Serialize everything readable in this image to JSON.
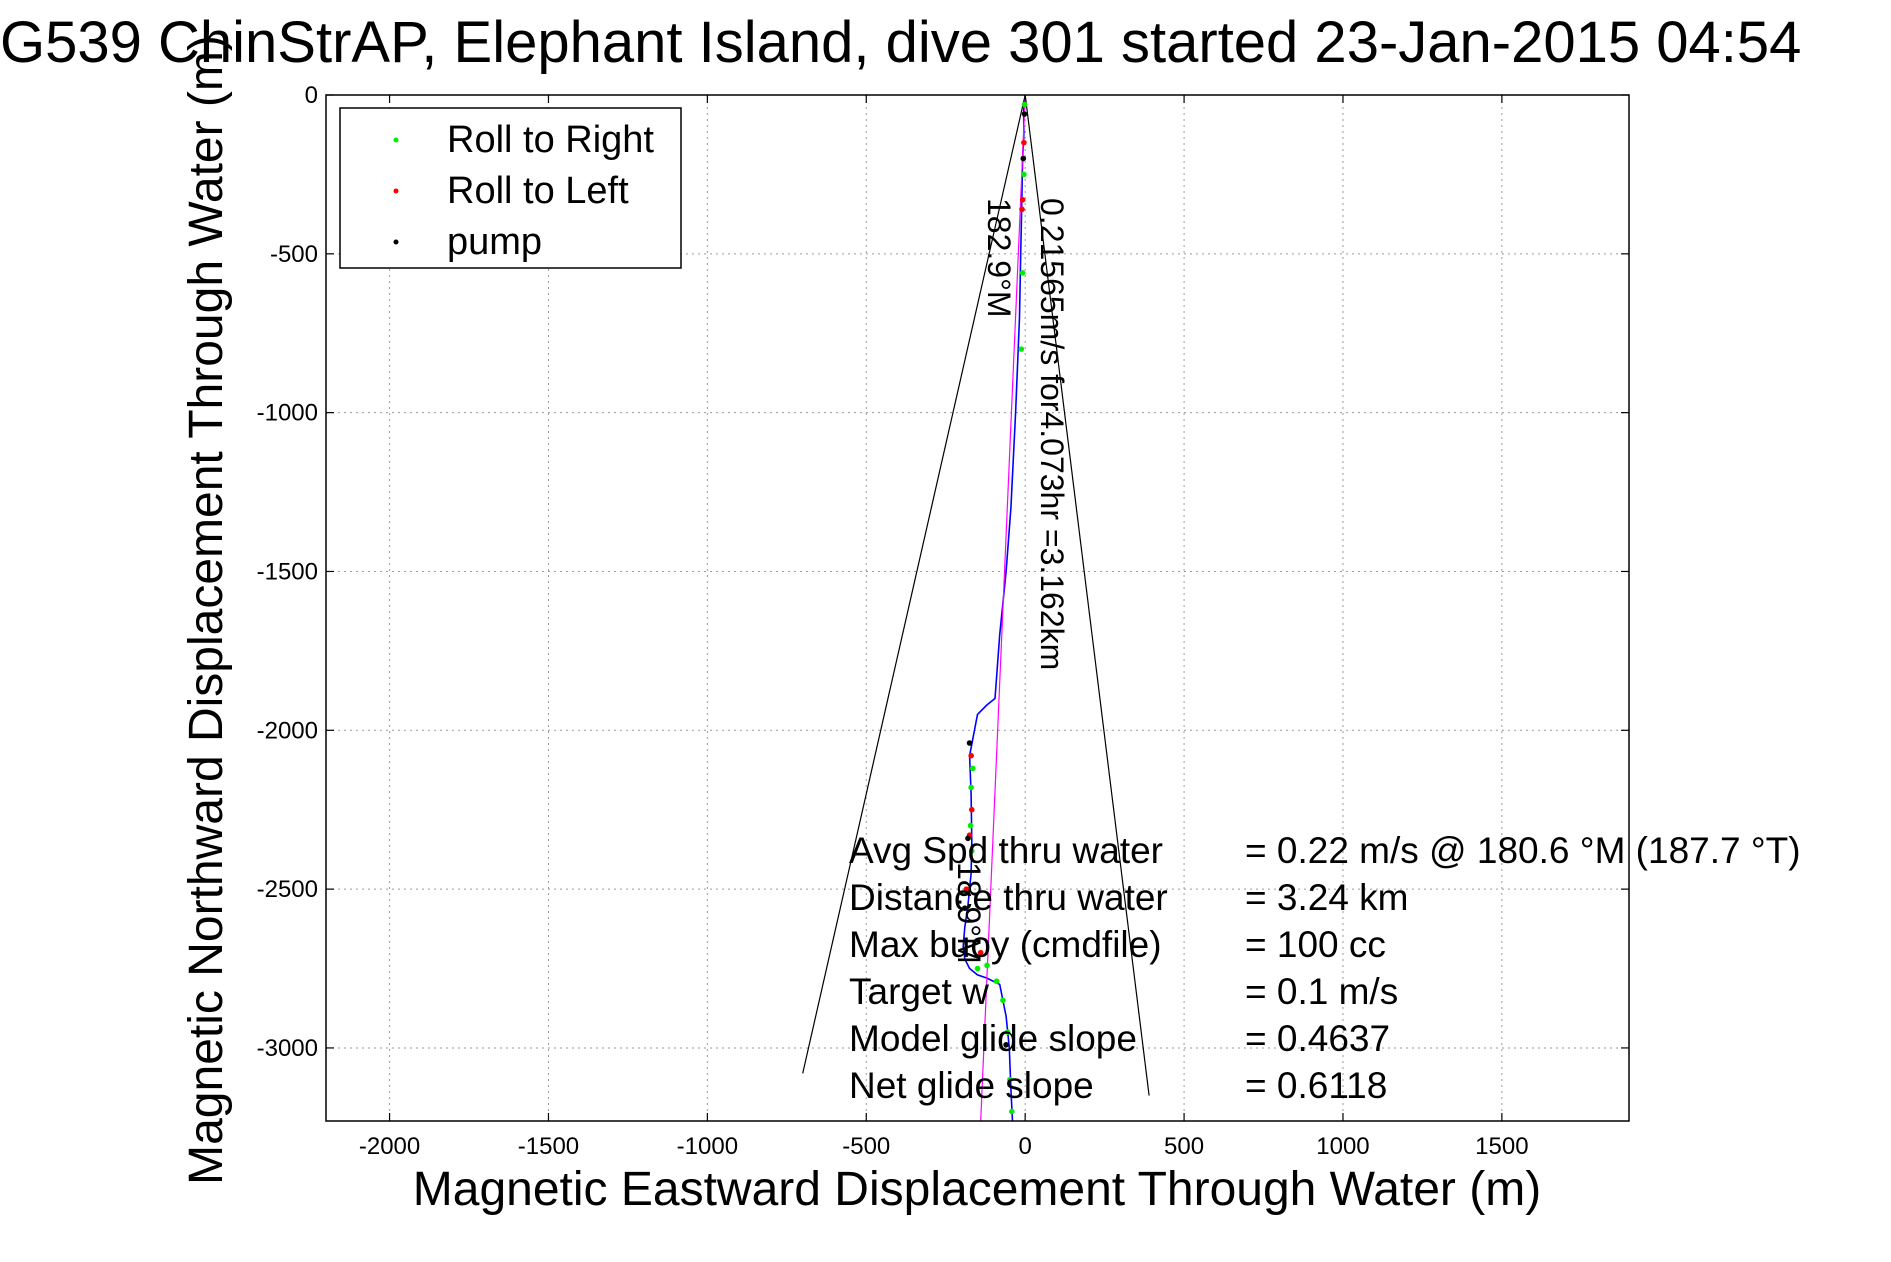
{
  "chart_data": {
    "type": "line",
    "title": "G539 ChinStrAP, Elephant Island, dive 301 started 23-Jan-2015 04:54",
    "xlabel": "Magnetic Eastward Displacement Through Water (m)",
    "ylabel": "Magnetic Northward Displacement Through Water (m)",
    "xlim": [
      -2200,
      1900
    ],
    "ylim": [
      -3230,
      0
    ],
    "xticks": [
      -2000,
      -1500,
      -1000,
      -500,
      0,
      500,
      1000,
      1500
    ],
    "yticks": [
      0,
      -500,
      -1000,
      -1500,
      -2000,
      -2500,
      -3000
    ],
    "grid": true,
    "legend": {
      "placement": "top-left",
      "entries": [
        {
          "label": "Roll to Right",
          "color": "#00ee00"
        },
        {
          "label": "Roll to Left",
          "color": "#ff0000"
        },
        {
          "label": "pump",
          "color": "#000000"
        }
      ]
    },
    "series": [
      {
        "style": "track",
        "color": "#0000ff",
        "x": [
          0,
          -5,
          -4,
          -8,
          -10,
          -12,
          -14,
          -18,
          -30,
          -45,
          -60,
          -80,
          -95,
          -120,
          -150,
          -175,
          -170,
          -168,
          -170,
          -180,
          -190,
          -195,
          -190,
          -175,
          -150,
          -120,
          -80,
          -60,
          -50,
          -45,
          -40
        ],
        "y": [
          0,
          -50,
          -120,
          -200,
          -300,
          -400,
          -500,
          -700,
          -1000,
          -1300,
          -1500,
          -1700,
          -1900,
          -1920,
          -1950,
          -2080,
          -2200,
          -2350,
          -2450,
          -2550,
          -2620,
          -2680,
          -2720,
          -2750,
          -2770,
          -2780,
          -2800,
          -2900,
          -3000,
          -3130,
          -3230
        ]
      },
      {
        "style": "direction-line",
        "color": "#ff00ff",
        "x": [
          0,
          -140
        ],
        "y": [
          0,
          -3230
        ]
      },
      {
        "style": "cone-left",
        "color": "#000000",
        "x": [
          0,
          -700
        ],
        "y": [
          0,
          -3080
        ]
      },
      {
        "style": "cone-right",
        "color": "#000000",
        "x": [
          0,
          390
        ],
        "y": [
          0,
          -3150
        ]
      }
    ],
    "markers": [
      {
        "kind": "roll-right",
        "color": "#00ee00",
        "x": [
          -2,
          -4,
          -8,
          -12,
          -165,
          -170,
          -172,
          -168,
          -150,
          -120,
          -90,
          -70,
          -55,
          -48,
          -42
        ],
        "y": [
          -30,
          -250,
          -560,
          -800,
          -2120,
          -2180,
          -2300,
          -2380,
          -2750,
          -2740,
          -2790,
          -2850,
          -2950,
          -3100,
          -3200
        ]
      },
      {
        "kind": "roll-left",
        "color": "#ff0000",
        "x": [
          -4,
          -8,
          -10,
          -170,
          -168,
          -175,
          -185,
          -140
        ],
        "y": [
          -150,
          -330,
          -360,
          -2080,
          -2250,
          -2330,
          -2500,
          -2700
        ]
      },
      {
        "kind": "pump",
        "color": "#000000",
        "x": [
          -2,
          -6,
          -175,
          -180,
          -190,
          -60
        ],
        "y": [
          -60,
          -200,
          -2040,
          -2340,
          -2560,
          -2990
        ]
      }
    ],
    "annotations": {
      "heading_label": "182.9°M",
      "speed_label": "0.21565m/s for4.073hr =3.162km",
      "end_label": "18.9°M",
      "stats": [
        {
          "name": "Avg Spd thru water",
          "value": "=  0.22 m/s @ 180.6 °M (187.7 °T)"
        },
        {
          "name": "Distance thru water",
          "value": "=  3.24 km"
        },
        {
          "name": "Max buoy (cmdfile)",
          "value": "= 100 cc"
        },
        {
          "name": "Target w",
          "value": "= 0.1 m/s"
        },
        {
          "name": "Model glide slope",
          "value": "= 0.4637"
        },
        {
          "name": "Net glide slope",
          "value": "= 0.6118"
        }
      ]
    }
  }
}
